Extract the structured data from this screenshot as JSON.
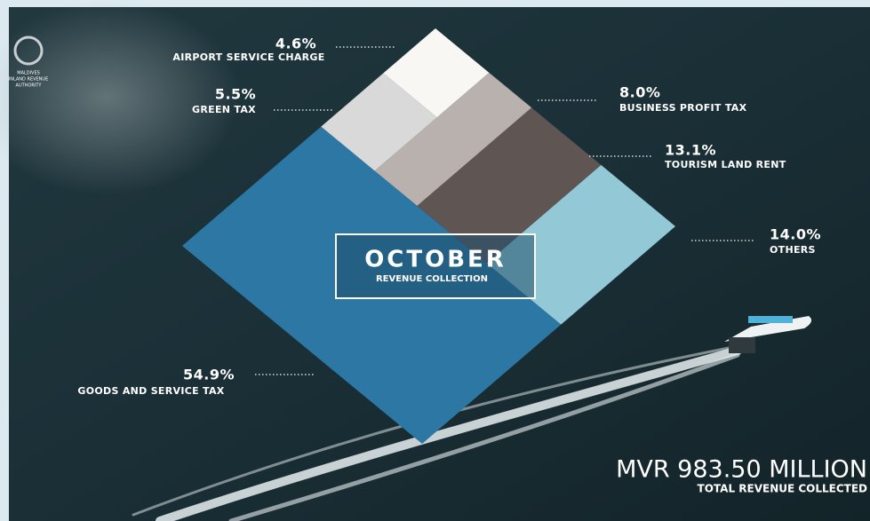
{
  "chart_data": {
    "type": "diamond-treemap",
    "title": "OCTOBER",
    "subtitle": "REVENUE COLLECTION",
    "total": "MVR 983.50 MILLION",
    "total_label": "TOTAL REVENUE COLLECTED",
    "logo": [
      "MALDIVES",
      "INLAND REVENUE",
      "AUTHORITY"
    ],
    "categories": [
      "GOODS AND SERVICE TAX",
      "OTHERS",
      "TOURISM LAND RENT",
      "BUSINESS PROFIT TAX",
      "GREEN TAX",
      "AIRPORT SERVICE CHARGE"
    ],
    "values": [
      54.9,
      14.0,
      13.1,
      8.0,
      5.5,
      4.6
    ],
    "value_labels": [
      "54.9%",
      "14.0%",
      "13.1%",
      "8.0%",
      "5.5%",
      "4.6%"
    ],
    "colors": [
      "#2c77a3",
      "#93c8d6",
      "#5f5654",
      "#b8b1ae",
      "#d9d9d9",
      "#f9f7f3"
    ]
  }
}
